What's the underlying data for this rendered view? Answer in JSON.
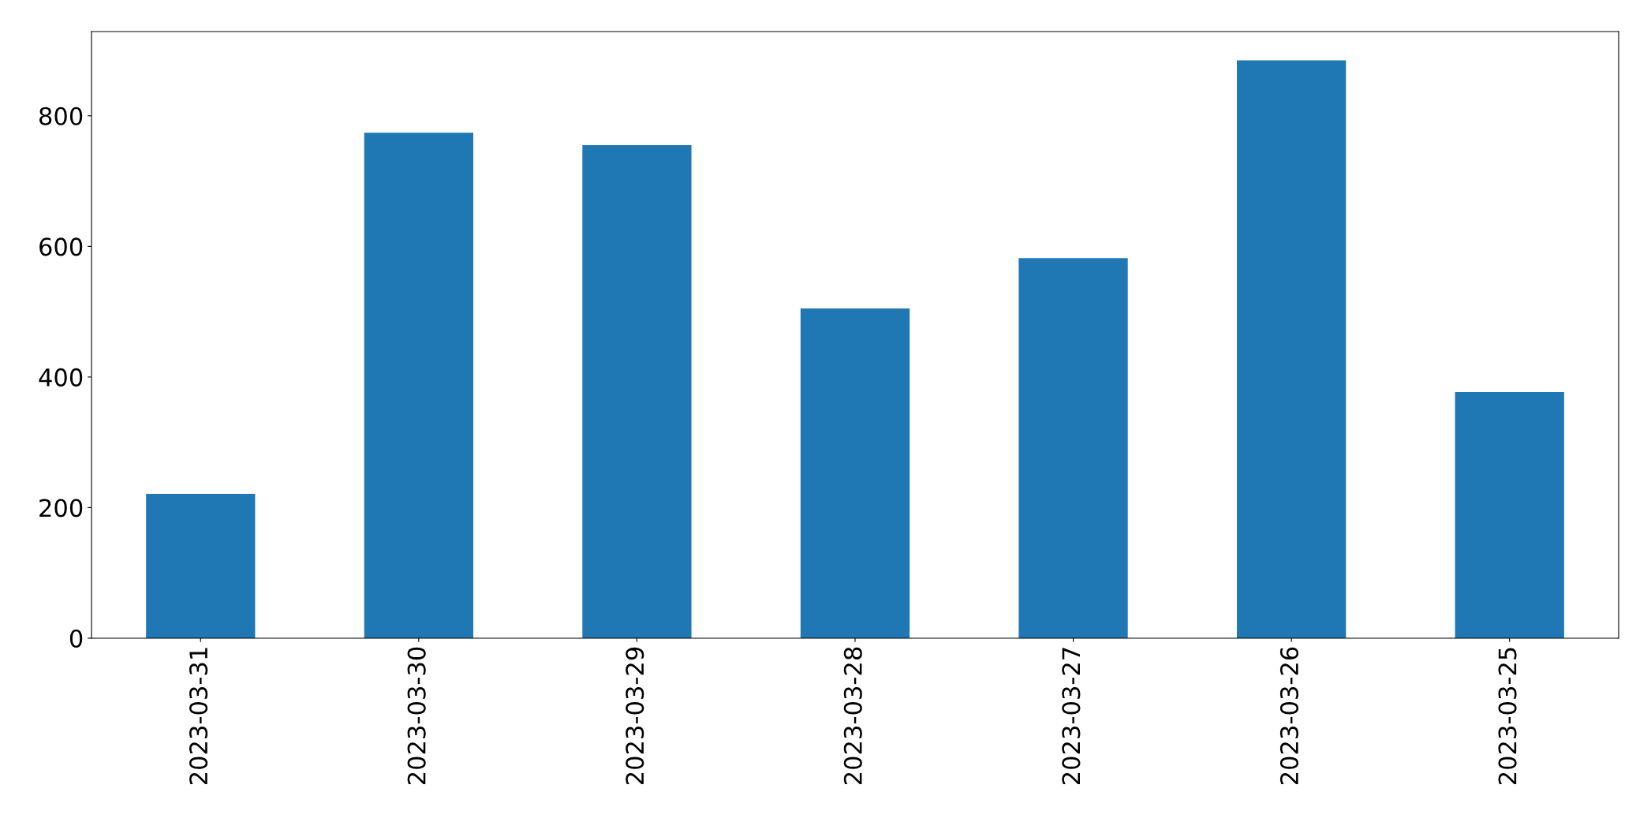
{
  "chart_data": {
    "type": "bar",
    "categories": [
      "2023-03-31",
      "2023-03-30",
      "2023-03-29",
      "2023-03-28",
      "2023-03-27",
      "2023-03-26",
      "2023-03-25"
    ],
    "values": [
      221,
      774,
      755,
      505,
      582,
      885,
      377
    ],
    "color": "#1f77b4",
    "ylim": [
      0,
      929
    ],
    "yticks": [
      0,
      200,
      400,
      600,
      800
    ],
    "grid": false
  }
}
